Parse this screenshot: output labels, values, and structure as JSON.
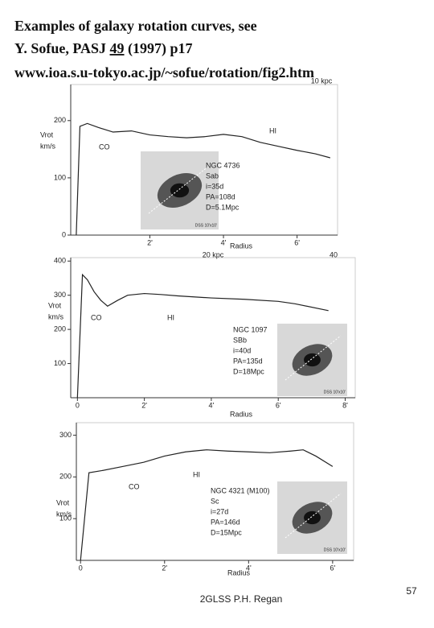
{
  "title_lines": [
    "Examples of galaxy rotation curves, see",
    "Y. Sofue, PASJ ",
    "49",
    " (1997) p17",
    "www.ioa.s.u-tokyo.ac.jp/~sofue/rotation/fig2.htm"
  ],
  "footer": "2GLSS P.H. Regan",
  "page_number": "57",
  "chart_data": [
    {
      "type": "line",
      "x": [
        0,
        0.1,
        0.3,
        0.6,
        1,
        1.5,
        2,
        2.5,
        3,
        3.5,
        4,
        4.5,
        5,
        5.5,
        6,
        6.5,
        6.9
      ],
      "values": [
        0,
        190,
        195,
        188,
        180,
        182,
        175,
        172,
        170,
        172,
        176,
        172,
        162,
        155,
        148,
        142,
        135
      ],
      "color": "#222222",
      "xlim": [
        -0.15,
        7.1
      ],
      "ylim": [
        0,
        263
      ],
      "xticks": [
        {
          "value": 2,
          "label": "2'"
        },
        {
          "value": 4,
          "label": "4'"
        },
        {
          "value": 6,
          "label": "6'"
        }
      ],
      "yticks": [
        0,
        100,
        200
      ],
      "xlabel": "Radius",
      "ylabel": "Vrot",
      "yunit": "km/s",
      "annotations": [
        "CO",
        "HI"
      ],
      "top_labels": [
        "10 kpc"
      ],
      "info": [
        "NGC 4736",
        "Sab",
        "i=35d",
        "PA=108d",
        "D=5.1Mpc"
      ],
      "image_caption": "DSS 10'x10'"
    },
    {
      "type": "line",
      "x": [
        0,
        0.15,
        0.3,
        0.5,
        0.7,
        0.9,
        1.2,
        1.5,
        2,
        2.5,
        3,
        4,
        5,
        6,
        6.5,
        7.5
      ],
      "values": [
        0,
        360,
        345,
        310,
        285,
        268,
        285,
        300,
        305,
        302,
        298,
        292,
        288,
        282,
        275,
        255
      ],
      "color": "#222222",
      "xlim": [
        -0.2,
        8.3
      ],
      "ylim": [
        0,
        410
      ],
      "xticks": [
        0,
        {
          "value": 2,
          "label": "2'"
        },
        {
          "value": 4,
          "label": "4'"
        },
        {
          "value": 6,
          "label": "6'"
        },
        {
          "value": 8,
          "label": "8'"
        }
      ],
      "yticks": [
        100,
        200,
        300,
        400
      ],
      "xlabel": "Radius",
      "ylabel": "Vrot",
      "yunit": "km/s",
      "annotations": [
        "CO",
        "HI"
      ],
      "top_labels": [
        "20 kpc",
        "40"
      ],
      "info": [
        "NGC 1097",
        "SBb",
        "i=40d",
        "PA=135d",
        "D=18Mpc"
      ],
      "image_caption": "DSS 10'x10'"
    },
    {
      "type": "line",
      "x": [
        0,
        0.2,
        0.5,
        1,
        1.5,
        2,
        2.5,
        3,
        3.5,
        4,
        4.5,
        5,
        5.3,
        5.6,
        6
      ],
      "values": [
        0,
        210,
        215,
        225,
        235,
        250,
        260,
        265,
        262,
        260,
        258,
        262,
        265,
        250,
        225
      ],
      "color": "#222222",
      "xlim": [
        -0.1,
        6.5
      ],
      "ylim": [
        0,
        330
      ],
      "xticks": [
        0,
        {
          "value": 2,
          "label": "2'"
        },
        {
          "value": 4,
          "label": "4'"
        },
        {
          "value": 6,
          "label": "6'"
        }
      ],
      "yticks": [
        100,
        200,
        300
      ],
      "xlabel": "Radius",
      "ylabel": "Vrot",
      "yunit": "km/s",
      "annotations": [
        "CO",
        "HI"
      ],
      "top_labels": [],
      "info": [
        "NGC 4321  (M100)",
        "Sc",
        "i=27d",
        "PA=146d",
        "D=15Mpc"
      ],
      "image_caption": "DSS 10'x10'"
    }
  ]
}
